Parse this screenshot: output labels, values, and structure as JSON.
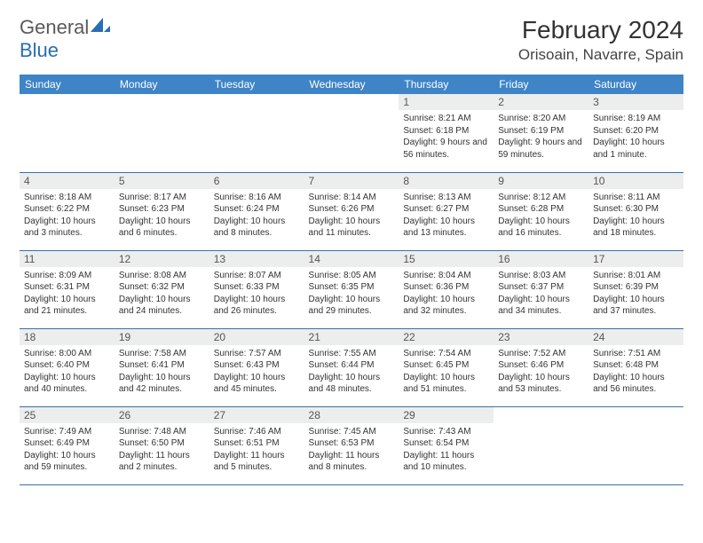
{
  "logo": {
    "text1": "General",
    "text2": "Blue"
  },
  "title": "February 2024",
  "location": "Orisoain, Navarre, Spain",
  "colors": {
    "header_bg": "#3e84c6",
    "header_text": "#ffffff",
    "daynum_bg": "#eceded",
    "border": "#3e6fa3",
    "logo_gray": "#5a5a5a",
    "logo_blue": "#2a6db3"
  },
  "fonts": {
    "title_size": 28,
    "location_size": 17,
    "header_size": 12,
    "daynum_size": 12,
    "content_size": 10
  },
  "day_headers": [
    "Sunday",
    "Monday",
    "Tuesday",
    "Wednesday",
    "Thursday",
    "Friday",
    "Saturday"
  ],
  "weeks": [
    [
      null,
      null,
      null,
      null,
      {
        "n": "1",
        "sr": "Sunrise: 8:21 AM",
        "ss": "Sunset: 6:18 PM",
        "dl": "Daylight: 9 hours and 56 minutes."
      },
      {
        "n": "2",
        "sr": "Sunrise: 8:20 AM",
        "ss": "Sunset: 6:19 PM",
        "dl": "Daylight: 9 hours and 59 minutes."
      },
      {
        "n": "3",
        "sr": "Sunrise: 8:19 AM",
        "ss": "Sunset: 6:20 PM",
        "dl": "Daylight: 10 hours and 1 minute."
      }
    ],
    [
      {
        "n": "4",
        "sr": "Sunrise: 8:18 AM",
        "ss": "Sunset: 6:22 PM",
        "dl": "Daylight: 10 hours and 3 minutes."
      },
      {
        "n": "5",
        "sr": "Sunrise: 8:17 AM",
        "ss": "Sunset: 6:23 PM",
        "dl": "Daylight: 10 hours and 6 minutes."
      },
      {
        "n": "6",
        "sr": "Sunrise: 8:16 AM",
        "ss": "Sunset: 6:24 PM",
        "dl": "Daylight: 10 hours and 8 minutes."
      },
      {
        "n": "7",
        "sr": "Sunrise: 8:14 AM",
        "ss": "Sunset: 6:26 PM",
        "dl": "Daylight: 10 hours and 11 minutes."
      },
      {
        "n": "8",
        "sr": "Sunrise: 8:13 AM",
        "ss": "Sunset: 6:27 PM",
        "dl": "Daylight: 10 hours and 13 minutes."
      },
      {
        "n": "9",
        "sr": "Sunrise: 8:12 AM",
        "ss": "Sunset: 6:28 PM",
        "dl": "Daylight: 10 hours and 16 minutes."
      },
      {
        "n": "10",
        "sr": "Sunrise: 8:11 AM",
        "ss": "Sunset: 6:30 PM",
        "dl": "Daylight: 10 hours and 18 minutes."
      }
    ],
    [
      {
        "n": "11",
        "sr": "Sunrise: 8:09 AM",
        "ss": "Sunset: 6:31 PM",
        "dl": "Daylight: 10 hours and 21 minutes."
      },
      {
        "n": "12",
        "sr": "Sunrise: 8:08 AM",
        "ss": "Sunset: 6:32 PM",
        "dl": "Daylight: 10 hours and 24 minutes."
      },
      {
        "n": "13",
        "sr": "Sunrise: 8:07 AM",
        "ss": "Sunset: 6:33 PM",
        "dl": "Daylight: 10 hours and 26 minutes."
      },
      {
        "n": "14",
        "sr": "Sunrise: 8:05 AM",
        "ss": "Sunset: 6:35 PM",
        "dl": "Daylight: 10 hours and 29 minutes."
      },
      {
        "n": "15",
        "sr": "Sunrise: 8:04 AM",
        "ss": "Sunset: 6:36 PM",
        "dl": "Daylight: 10 hours and 32 minutes."
      },
      {
        "n": "16",
        "sr": "Sunrise: 8:03 AM",
        "ss": "Sunset: 6:37 PM",
        "dl": "Daylight: 10 hours and 34 minutes."
      },
      {
        "n": "17",
        "sr": "Sunrise: 8:01 AM",
        "ss": "Sunset: 6:39 PM",
        "dl": "Daylight: 10 hours and 37 minutes."
      }
    ],
    [
      {
        "n": "18",
        "sr": "Sunrise: 8:00 AM",
        "ss": "Sunset: 6:40 PM",
        "dl": "Daylight: 10 hours and 40 minutes."
      },
      {
        "n": "19",
        "sr": "Sunrise: 7:58 AM",
        "ss": "Sunset: 6:41 PM",
        "dl": "Daylight: 10 hours and 42 minutes."
      },
      {
        "n": "20",
        "sr": "Sunrise: 7:57 AM",
        "ss": "Sunset: 6:43 PM",
        "dl": "Daylight: 10 hours and 45 minutes."
      },
      {
        "n": "21",
        "sr": "Sunrise: 7:55 AM",
        "ss": "Sunset: 6:44 PM",
        "dl": "Daylight: 10 hours and 48 minutes."
      },
      {
        "n": "22",
        "sr": "Sunrise: 7:54 AM",
        "ss": "Sunset: 6:45 PM",
        "dl": "Daylight: 10 hours and 51 minutes."
      },
      {
        "n": "23",
        "sr": "Sunrise: 7:52 AM",
        "ss": "Sunset: 6:46 PM",
        "dl": "Daylight: 10 hours and 53 minutes."
      },
      {
        "n": "24",
        "sr": "Sunrise: 7:51 AM",
        "ss": "Sunset: 6:48 PM",
        "dl": "Daylight: 10 hours and 56 minutes."
      }
    ],
    [
      {
        "n": "25",
        "sr": "Sunrise: 7:49 AM",
        "ss": "Sunset: 6:49 PM",
        "dl": "Daylight: 10 hours and 59 minutes."
      },
      {
        "n": "26",
        "sr": "Sunrise: 7:48 AM",
        "ss": "Sunset: 6:50 PM",
        "dl": "Daylight: 11 hours and 2 minutes."
      },
      {
        "n": "27",
        "sr": "Sunrise: 7:46 AM",
        "ss": "Sunset: 6:51 PM",
        "dl": "Daylight: 11 hours and 5 minutes."
      },
      {
        "n": "28",
        "sr": "Sunrise: 7:45 AM",
        "ss": "Sunset: 6:53 PM",
        "dl": "Daylight: 11 hours and 8 minutes."
      },
      {
        "n": "29",
        "sr": "Sunrise: 7:43 AM",
        "ss": "Sunset: 6:54 PM",
        "dl": "Daylight: 11 hours and 10 minutes."
      },
      null,
      null
    ]
  ]
}
